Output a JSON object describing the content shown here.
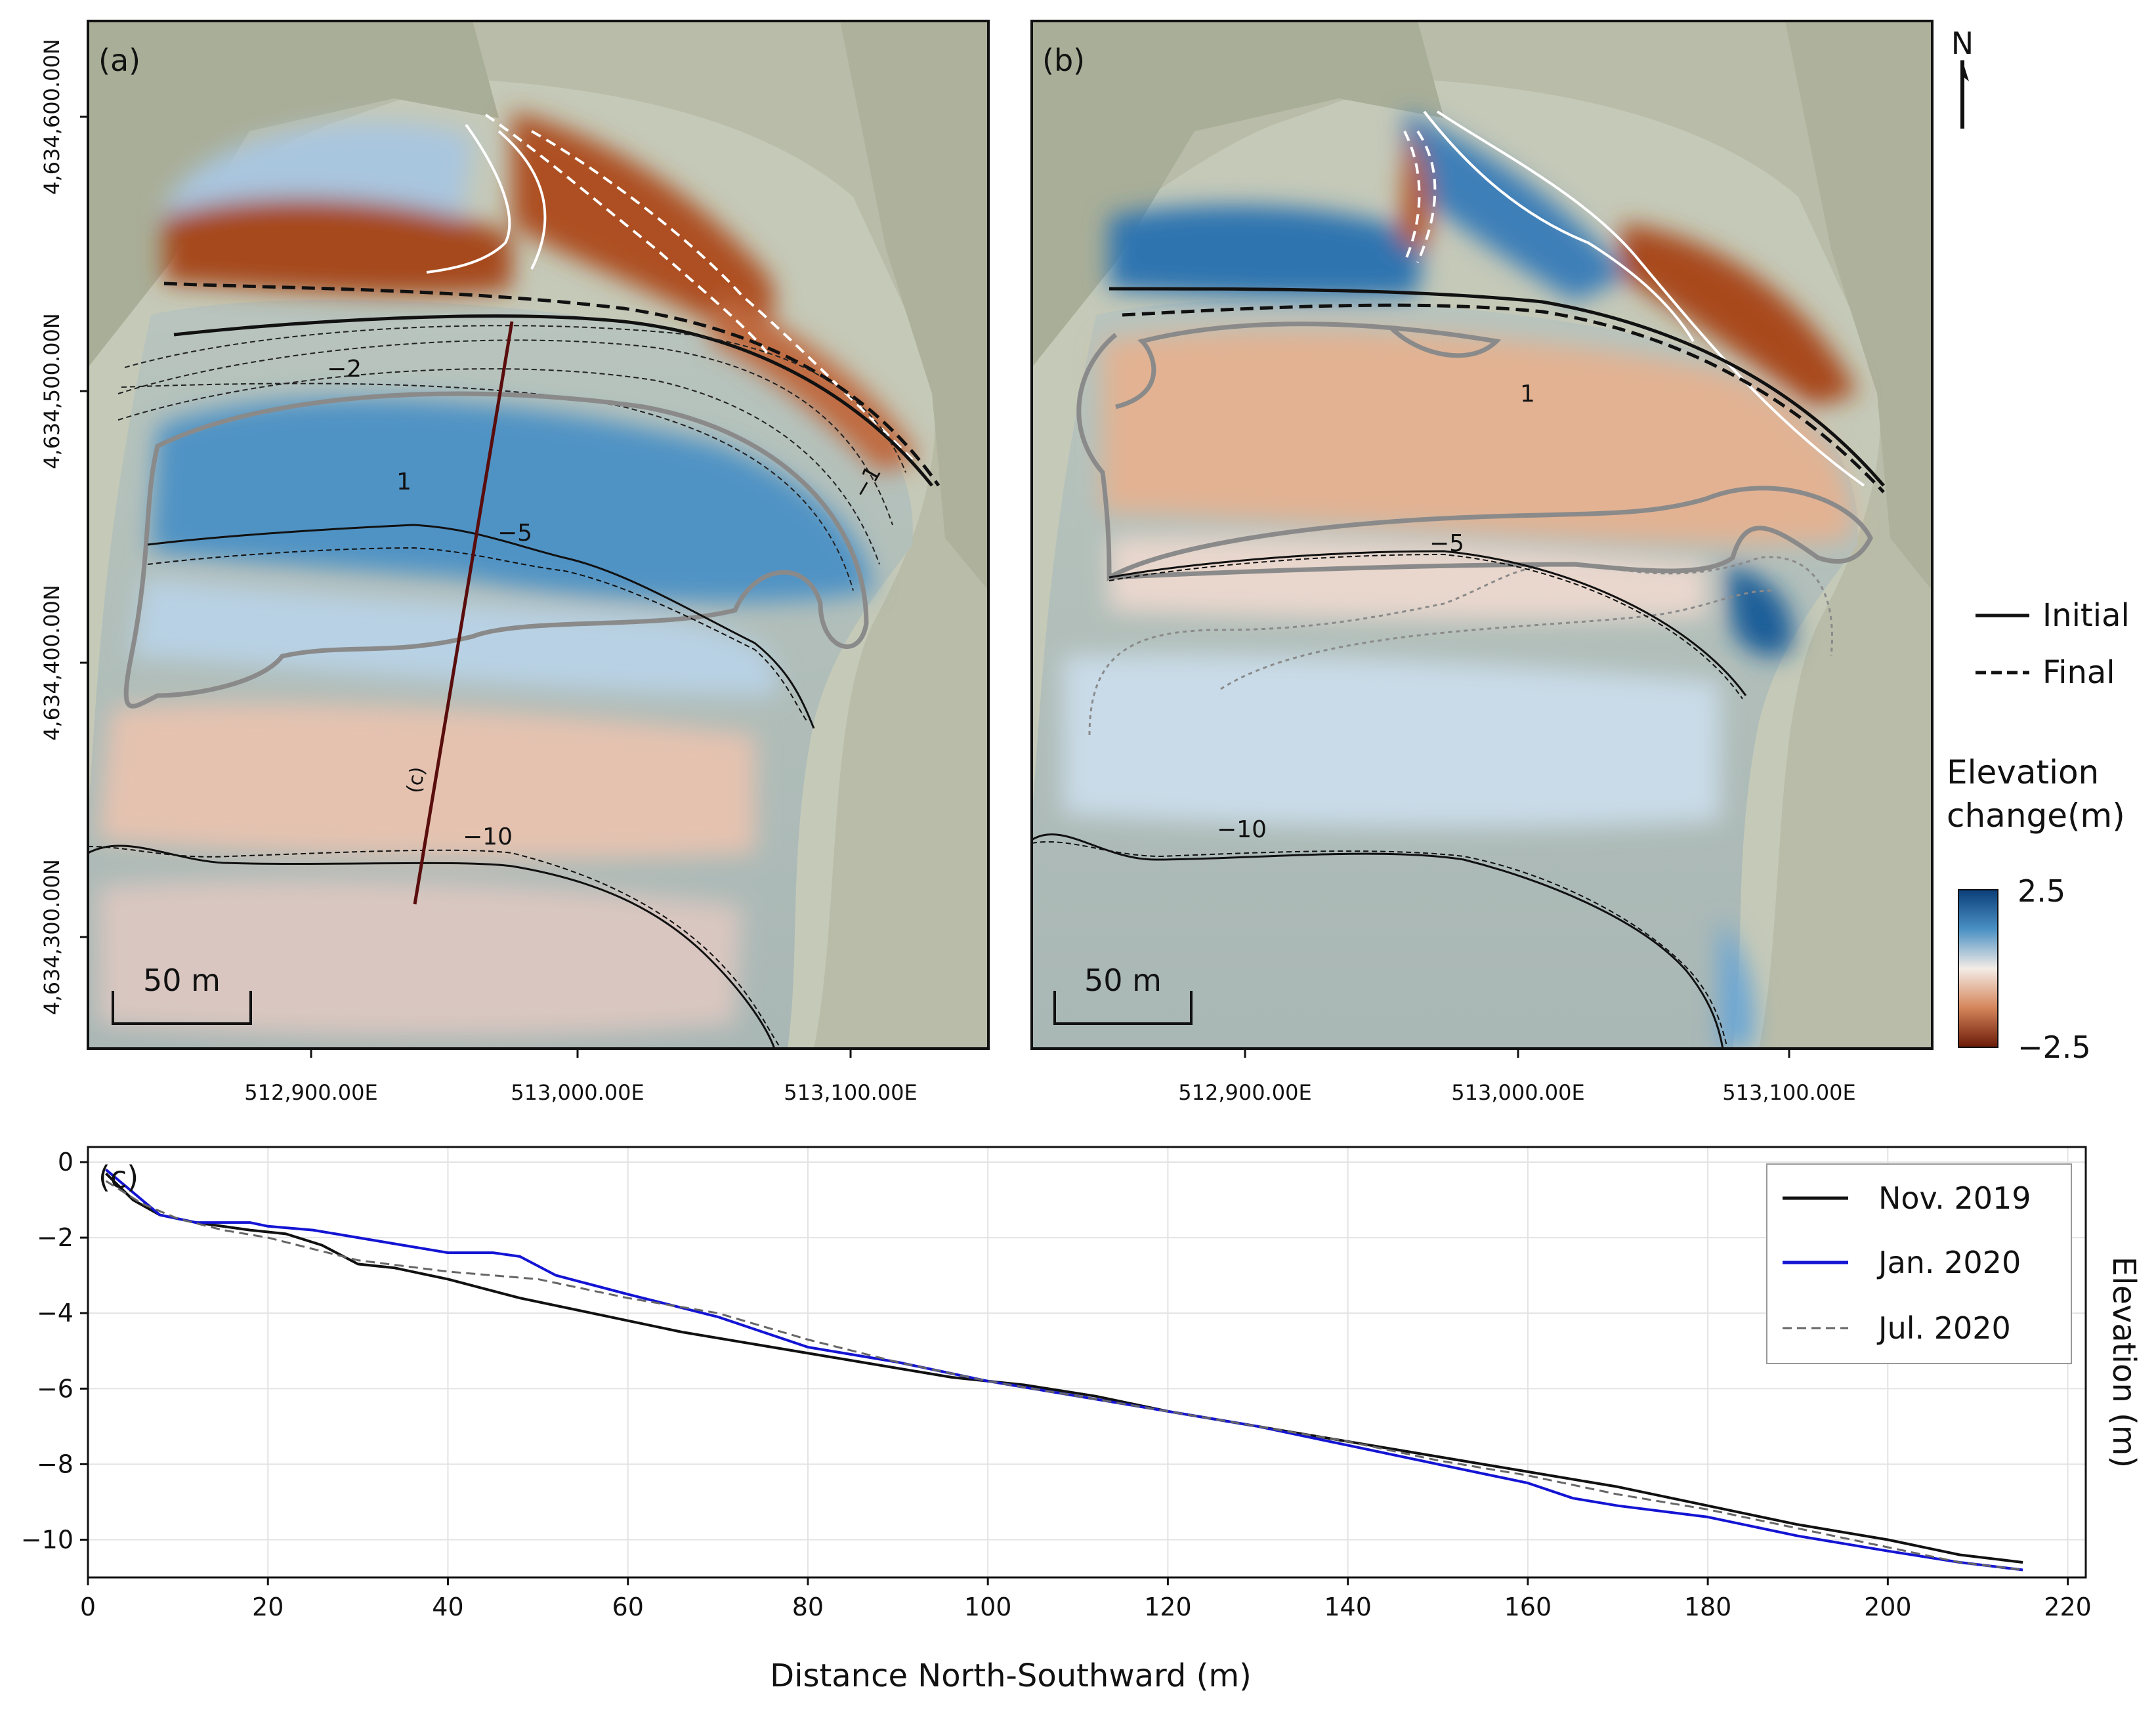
{
  "panel_a": {
    "label": "(a)",
    "contours": {
      "m2": "−2",
      "m1": "−1",
      "p1": "1",
      "m5": "−5",
      "m10": "−10"
    },
    "transect_label": "(c)",
    "scalebar": "50 m"
  },
  "panel_b": {
    "label": "(b)",
    "contours": {
      "p1": "1",
      "m5": "−5",
      "m10": "−10"
    },
    "scalebar": "50 m"
  },
  "map_axes": {
    "northing_ticks": [
      "4,634,600.00N",
      "4,634,500.00N",
      "4,634,400.00N",
      "4,634,300.00N"
    ],
    "easting_ticks_a": [
      "512,900.00E",
      "513,000.00E",
      "513,100.00E"
    ],
    "easting_ticks_b": [
      "512,900.00E",
      "513,000.00E",
      "513,100.00E"
    ]
  },
  "north_arrow": "N",
  "line_legend": {
    "initial": "Initial",
    "final": "Final"
  },
  "colorbar": {
    "title_line1": "Elevation",
    "title_line2": "change(m)",
    "max_label": "2.5",
    "min_label": "−2.5",
    "colors": {
      "high": "#0b3f7a",
      "mid_high": "#4a90c4",
      "mid": "#f3ece6",
      "mid_low": "#d5855a",
      "low": "#6b1a08"
    }
  },
  "chart_data": {
    "type": "line",
    "panel_label": "(c)",
    "title": "",
    "xlabel": "Distance North-Southward (m)",
    "ylabel": "Elevation (m)",
    "xlim": [
      0,
      222
    ],
    "ylim": [
      -11,
      0.4
    ],
    "xticks": [
      0,
      20,
      40,
      60,
      80,
      100,
      120,
      140,
      160,
      180,
      200,
      220
    ],
    "yticks": [
      0,
      -2,
      -4,
      -6,
      -8,
      -10
    ],
    "ytick_labels": [
      "0",
      "−2",
      "−4",
      "−6",
      "−8",
      "−10"
    ],
    "grid": true,
    "legend_position": "top-right",
    "series": [
      {
        "name": "Nov. 2019",
        "color": "#111111",
        "dash": "",
        "x": [
          2,
          5,
          8,
          12,
          18,
          22,
          26,
          30,
          34,
          40,
          48,
          56,
          66,
          76,
          86,
          96,
          104,
          112,
          120,
          130,
          140,
          150,
          160,
          170,
          180,
          190,
          200,
          208,
          215
        ],
        "y": [
          -0.3,
          -1.0,
          -1.4,
          -1.6,
          -1.8,
          -1.9,
          -2.2,
          -2.7,
          -2.8,
          -3.1,
          -3.6,
          -4.0,
          -4.5,
          -4.9,
          -5.3,
          -5.7,
          -5.9,
          -6.2,
          -6.6,
          -7.0,
          -7.4,
          -7.8,
          -8.2,
          -8.6,
          -9.1,
          -9.6,
          -10.0,
          -10.4,
          -10.6
        ]
      },
      {
        "name": "Jan. 2020",
        "color": "#1414d4",
        "dash": "",
        "x": [
          2,
          5,
          8,
          12,
          18,
          20,
          25,
          30,
          35,
          40,
          45,
          48,
          52,
          60,
          70,
          80,
          90,
          100,
          110,
          120,
          130,
          140,
          150,
          160,
          165,
          170,
          180,
          190,
          200,
          208,
          215
        ],
        "y": [
          -0.2,
          -0.8,
          -1.4,
          -1.6,
          -1.6,
          -1.7,
          -1.8,
          -2.0,
          -2.2,
          -2.4,
          -2.4,
          -2.5,
          -3.0,
          -3.5,
          -4.1,
          -4.9,
          -5.3,
          -5.8,
          -6.2,
          -6.6,
          -7.0,
          -7.5,
          -8.0,
          -8.5,
          -8.9,
          -9.1,
          -9.4,
          -9.9,
          -10.3,
          -10.6,
          -10.8
        ]
      },
      {
        "name": "Jul. 2020",
        "color": "#666666",
        "dash": "14,8",
        "x": [
          2,
          6,
          10,
          15,
          20,
          25,
          30,
          40,
          50,
          60,
          70,
          80,
          90,
          100,
          110,
          120,
          130,
          140,
          150,
          160,
          170,
          180,
          190,
          200,
          208,
          215
        ],
        "y": [
          -0.5,
          -1.1,
          -1.5,
          -1.8,
          -2.0,
          -2.3,
          -2.6,
          -2.9,
          -3.1,
          -3.6,
          -4.0,
          -4.7,
          -5.3,
          -5.8,
          -6.2,
          -6.6,
          -7.0,
          -7.4,
          -7.9,
          -8.3,
          -8.8,
          -9.2,
          -9.7,
          -10.2,
          -10.6,
          -10.8
        ]
      }
    ]
  }
}
